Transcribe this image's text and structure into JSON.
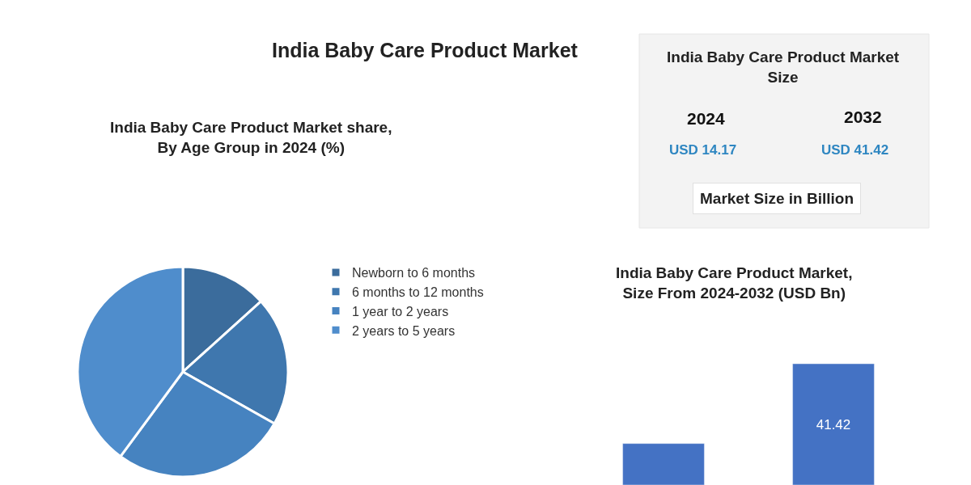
{
  "chart_data": [
    {
      "type": "pie",
      "title": "India Baby Care Product Market",
      "subtitle": "India Baby Care Product Market share, By Age Group in 2024 (%)",
      "categories": [
        "Newborn to 6 months",
        "6 months to 12 months",
        "1 year to 2 years",
        "2 years to 5 years"
      ],
      "values": [
        13.3,
        19.9,
        26.9,
        39.9
      ],
      "colors": [
        "#3b6c9c",
        "#3f77ae",
        "#4683c0",
        "#4f8dcc"
      ],
      "legend": "right"
    },
    {
      "type": "other",
      "title": "India Baby Care Product Market Size",
      "annotations": [
        "2024",
        "USD 14.17",
        "2032",
        "USD 41.42",
        "Market Size in Billion"
      ]
    },
    {
      "type": "bar",
      "title": "India Baby Care Product Market, Size From 2024-2032 (USD Bn)",
      "categories": [
        null,
        null
      ],
      "values": [
        14.17,
        41.42
      ],
      "color": "#4472c4",
      "value_labels": [
        null,
        "41.42"
      ]
    }
  ]
}
